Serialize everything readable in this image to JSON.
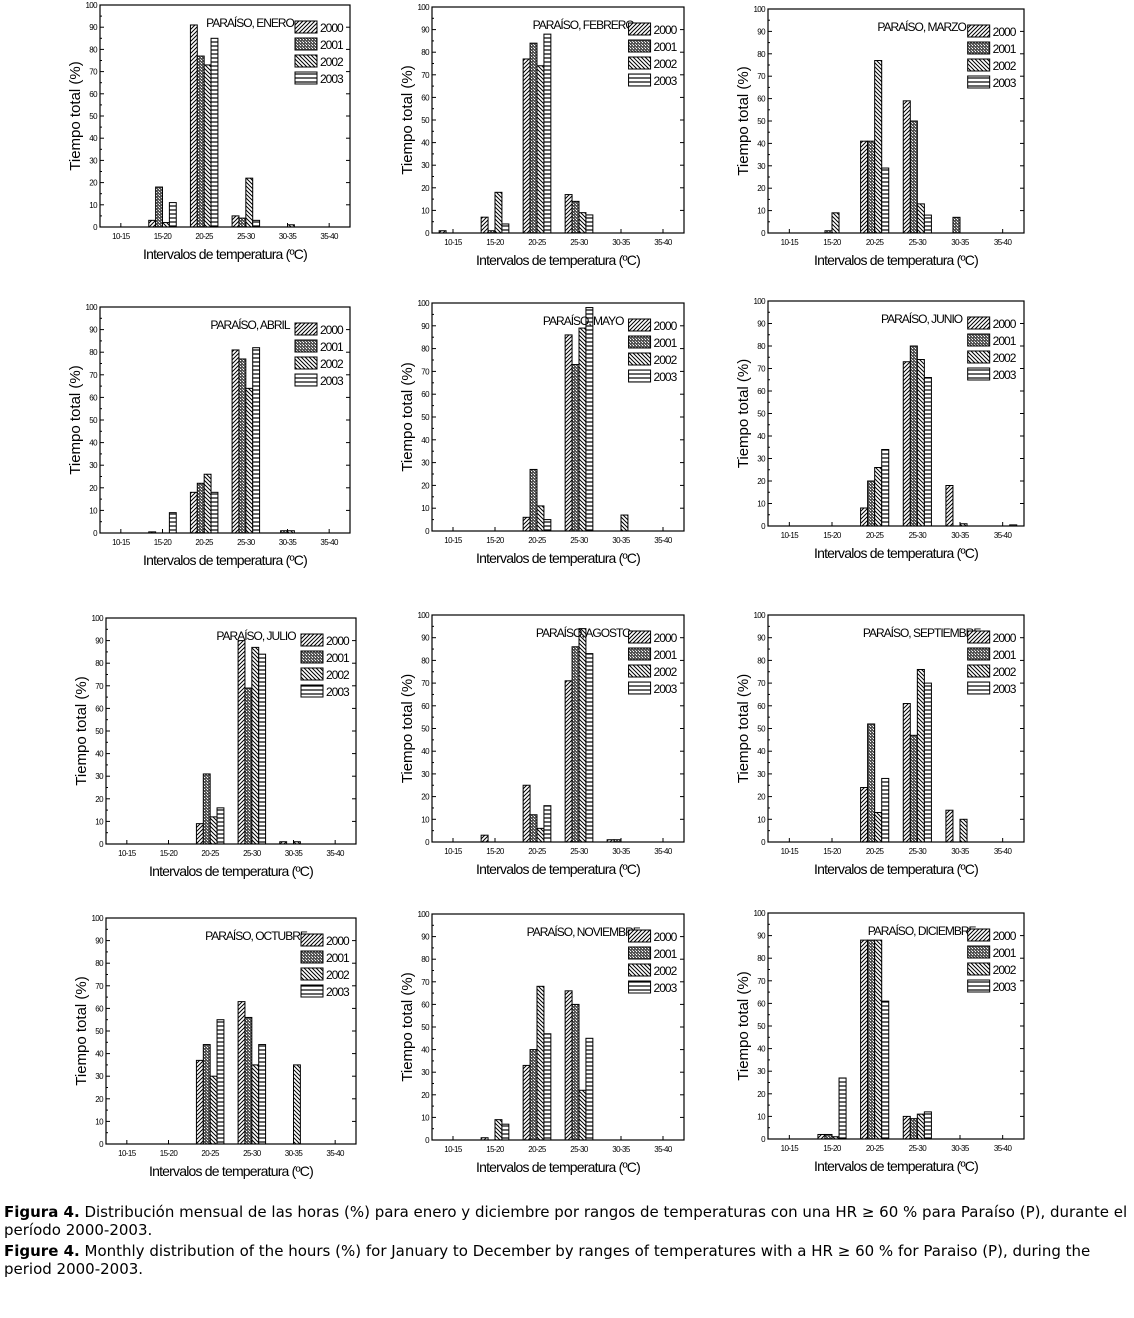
{
  "chart_data": [
    {
      "type": "bar",
      "title": "PARAÍSO, ENERO",
      "xlabel": "Intervalos de temperatura (ºC)",
      "ylabel": "Tiempo total (%)",
      "ylim": [
        0,
        100
      ],
      "categories": [
        "10-15",
        "15-20",
        "20-25",
        "25-30",
        "30-35",
        "35-40"
      ],
      "series": [
        {
          "name": "2000",
          "values": [
            0,
            3,
            91,
            5,
            0,
            0
          ]
        },
        {
          "name": "2001",
          "values": [
            0,
            18,
            77,
            4,
            0,
            0
          ]
        },
        {
          "name": "2002",
          "values": [
            0,
            2,
            73,
            22,
            1,
            0
          ]
        },
        {
          "name": "2003",
          "values": [
            0,
            11,
            85,
            3,
            0,
            0
          ]
        }
      ]
    },
    {
      "type": "bar",
      "title": "PARAÍSO, FEBRERO",
      "xlabel": "Intervalos de temperatura (ºC)",
      "ylabel": "Tiempo total (%)",
      "ylim": [
        0,
        100
      ],
      "categories": [
        "10-15",
        "15-20",
        "20-25",
        "25-30",
        "30-35",
        "35-40"
      ],
      "series": [
        {
          "name": "2000",
          "values": [
            1,
            7,
            77,
            17,
            0,
            0
          ]
        },
        {
          "name": "2001",
          "values": [
            0,
            1,
            84,
            14,
            0,
            0
          ]
        },
        {
          "name": "2002",
          "values": [
            0,
            18,
            74,
            9,
            0,
            0
          ]
        },
        {
          "name": "2003",
          "values": [
            0,
            4,
            88,
            8,
            0,
            0
          ]
        }
      ]
    },
    {
      "type": "bar",
      "title": "PARAÍSO, MARZO",
      "xlabel": "Intervalos de temperatura (ºC)",
      "ylabel": "Tiempo total (%)",
      "ylim": [
        0,
        100
      ],
      "categories": [
        "10-15",
        "15-20",
        "20-25",
        "25-30",
        "30-35",
        "35-40"
      ],
      "series": [
        {
          "name": "2000",
          "values": [
            0,
            0,
            41,
            59,
            0,
            0
          ]
        },
        {
          "name": "2001",
          "values": [
            0,
            1,
            41,
            50,
            7,
            0
          ]
        },
        {
          "name": "2002",
          "values": [
            0,
            9,
            77,
            13,
            0,
            0
          ]
        },
        {
          "name": "2003",
          "values": [
            0,
            0,
            29,
            8,
            0,
            0
          ]
        }
      ]
    },
    {
      "type": "bar",
      "title": "PARAÍSO, ABRIL",
      "xlabel": "Intervalos de temperatura (ºC)",
      "ylabel": "Tiempo total (%)",
      "ylim": [
        0,
        100
      ],
      "categories": [
        "10-15",
        "15-20",
        "20-25",
        "25-30",
        "30-35",
        "35-40"
      ],
      "series": [
        {
          "name": "2000",
          "values": [
            0,
            0.5,
            18,
            81,
            0,
            0
          ]
        },
        {
          "name": "2001",
          "values": [
            0,
            0,
            22,
            77,
            1,
            0
          ]
        },
        {
          "name": "2002",
          "values": [
            0,
            0,
            26,
            64,
            1,
            0
          ]
        },
        {
          "name": "2003",
          "values": [
            0,
            9,
            18,
            82,
            0,
            0
          ]
        }
      ]
    },
    {
      "type": "bar",
      "title": "PARAÍSO, MAYO",
      "xlabel": "Intervalos de temperatura (ºC)",
      "ylabel": "Tiempo total (%)",
      "ylim": [
        0,
        100
      ],
      "categories": [
        "10-15",
        "15-20",
        "20-25",
        "25-30",
        "30-35",
        "35-40"
      ],
      "series": [
        {
          "name": "2000",
          "values": [
            0,
            0,
            6,
            86,
            0,
            0
          ]
        },
        {
          "name": "2001",
          "values": [
            0,
            0,
            27,
            73,
            0,
            0
          ]
        },
        {
          "name": "2002",
          "values": [
            0,
            0,
            11,
            89,
            7,
            0
          ]
        },
        {
          "name": "2003",
          "values": [
            0,
            0,
            5,
            98,
            0,
            0
          ]
        }
      ]
    },
    {
      "type": "bar",
      "title": "PARAÍSO, JUNIO",
      "xlabel": "Intervalos de temperatura (ºC)",
      "ylabel": "Tiempo total (%)",
      "ylim": [
        0,
        100
      ],
      "categories": [
        "10-15",
        "15-20",
        "20-25",
        "25-30",
        "30-35",
        "35-40"
      ],
      "series": [
        {
          "name": "2000",
          "values": [
            0,
            0,
            8,
            73,
            18,
            0
          ]
        },
        {
          "name": "2001",
          "values": [
            0,
            0,
            20,
            80,
            0,
            0
          ]
        },
        {
          "name": "2002",
          "values": [
            0,
            0,
            26,
            74,
            1,
            0
          ]
        },
        {
          "name": "2003",
          "values": [
            0,
            0,
            34,
            66,
            0,
            0.5
          ]
        }
      ]
    },
    {
      "type": "bar",
      "title": "PARAÍSO, JULIO",
      "xlabel": "Intervalos de temperatura (ºC)",
      "ylabel": "Tiempo total (%)",
      "ylim": [
        0,
        100
      ],
      "categories": [
        "10-15",
        "15-20",
        "20-25",
        "25-30",
        "30-35",
        "35-40"
      ],
      "series": [
        {
          "name": "2000",
          "values": [
            0,
            0,
            9,
            90,
            1,
            0
          ]
        },
        {
          "name": "2001",
          "values": [
            0,
            0,
            31,
            69,
            0,
            0
          ]
        },
        {
          "name": "2002",
          "values": [
            0,
            0,
            12,
            87,
            1,
            0
          ]
        },
        {
          "name": "2003",
          "values": [
            0,
            0,
            16,
            84,
            0,
            0
          ]
        }
      ]
    },
    {
      "type": "bar",
      "title": "PARAÍSO, AGOSTO",
      "xlabel": "Intervalos de temperatura (ºC)",
      "ylabel": "Tiempo total (%)",
      "ylim": [
        0,
        100
      ],
      "categories": [
        "10-15",
        "15-20",
        "20-25",
        "25-30",
        "30-35",
        "35-40"
      ],
      "series": [
        {
          "name": "2000",
          "values": [
            0,
            3,
            25,
            71,
            1,
            0
          ]
        },
        {
          "name": "2001",
          "values": [
            0,
            0,
            12,
            86,
            1,
            0
          ]
        },
        {
          "name": "2002",
          "values": [
            0,
            0,
            6,
            94,
            0,
            0
          ]
        },
        {
          "name": "2003",
          "values": [
            0,
            0,
            16,
            83,
            0,
            0
          ]
        }
      ]
    },
    {
      "type": "bar",
      "title": "PARAÍSO, SEPTIEMBRE",
      "xlabel": "Intervalos de temperatura (ºC)",
      "ylabel": "Tiempo total (%)",
      "ylim": [
        0,
        100
      ],
      "categories": [
        "10-15",
        "15-20",
        "20-25",
        "25-30",
        "30-35",
        "35-40"
      ],
      "series": [
        {
          "name": "2000",
          "values": [
            0,
            0,
            24,
            61,
            14,
            0
          ]
        },
        {
          "name": "2001",
          "values": [
            0,
            0,
            52,
            47,
            0,
            0
          ]
        },
        {
          "name": "2002",
          "values": [
            0,
            0,
            13,
            76,
            10,
            0
          ]
        },
        {
          "name": "2003",
          "values": [
            0,
            0,
            28,
            70,
            0,
            0
          ]
        }
      ]
    },
    {
      "type": "bar",
      "title": "PARAÍSO, OCTUBRE",
      "xlabel": "Intervalos de temperatura (ºC)",
      "ylabel": "Tiempo total (%)",
      "ylim": [
        0,
        100
      ],
      "categories": [
        "10-15",
        "15-20",
        "20-25",
        "25-30",
        "30-35",
        "35-40"
      ],
      "series": [
        {
          "name": "2000",
          "values": [
            0,
            0,
            37,
            63,
            0,
            0
          ]
        },
        {
          "name": "2001",
          "values": [
            0,
            0,
            44,
            56,
            0,
            0
          ]
        },
        {
          "name": "2002",
          "values": [
            0,
            0,
            30,
            35,
            35,
            0
          ]
        },
        {
          "name": "2003",
          "values": [
            0,
            0,
            55,
            44,
            0,
            0
          ]
        }
      ]
    },
    {
      "type": "bar",
      "title": "PARAÍSO, NOVIEMBRE",
      "xlabel": "Intervalos de temperatura (ºC)",
      "ylabel": "Tiempo total (%)",
      "ylim": [
        0,
        100
      ],
      "categories": [
        "10-15",
        "15-20",
        "20-25",
        "25-30",
        "30-35",
        "35-40"
      ],
      "series": [
        {
          "name": "2000",
          "values": [
            0,
            1,
            33,
            66,
            0,
            0
          ]
        },
        {
          "name": "2001",
          "values": [
            0,
            0,
            40,
            60,
            0,
            0
          ]
        },
        {
          "name": "2002",
          "values": [
            0,
            9,
            68,
            22,
            0,
            0
          ]
        },
        {
          "name": "2003",
          "values": [
            0,
            7,
            47,
            45,
            0,
            0
          ]
        }
      ]
    },
    {
      "type": "bar",
      "title": "PARAÍSO, DICIEMBRE",
      "xlabel": "Intervalos de temperatura (ºC)",
      "ylabel": "Tiempo total (%)",
      "ylim": [
        0,
        100
      ],
      "categories": [
        "10-15",
        "15-20",
        "20-25",
        "25-30",
        "30-35",
        "35-40"
      ],
      "series": [
        {
          "name": "2000",
          "values": [
            0,
            2,
            88,
            10,
            0,
            0
          ]
        },
        {
          "name": "2001",
          "values": [
            0,
            2,
            88,
            9,
            0,
            0
          ]
        },
        {
          "name": "2002",
          "values": [
            0,
            1,
            88,
            11,
            0,
            0
          ]
        },
        {
          "name": "2003",
          "values": [
            0,
            27,
            61,
            12,
            0,
            0
          ]
        }
      ]
    }
  ],
  "caption": {
    "es_label": "Figura 4.",
    "es_text": " Distribución mensual de las horas (%) para enero y diciembre por rangos de temperaturas con una HR ≥ 60 % para Paraíso (P), durante el período 2000-2003.",
    "en_label": "Figure 4.",
    "en_text": " Monthly distribution of the hours (%) for January to December by ranges of temperatures with a HR ≥ 60 % for Paraiso (P), during the period 2000-2003."
  }
}
